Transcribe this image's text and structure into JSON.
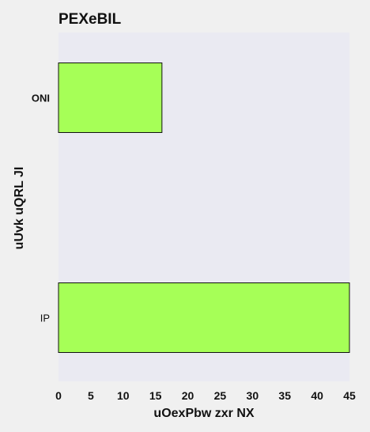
{
  "chart_data": {
    "type": "bar",
    "orientation": "horizontal",
    "title": "PEXeBIL",
    "xlabel": "uOexPbw zxr NX",
    "ylabel": "uUvk uQRL JI",
    "categories": [
      "ONI",
      "IP"
    ],
    "values": [
      16,
      45
    ],
    "xlim": [
      0,
      45
    ],
    "xticks": [
      "0",
      "5",
      "10",
      "15",
      "20",
      "25",
      "30",
      "35",
      "40",
      "45"
    ],
    "grid": false,
    "legend": "none",
    "colors": {
      "bar_fill": "#a6ff57",
      "bar_edge": "#111111",
      "plot_background": "#eaeaf2",
      "page_background": "#f0f0f0"
    }
  }
}
